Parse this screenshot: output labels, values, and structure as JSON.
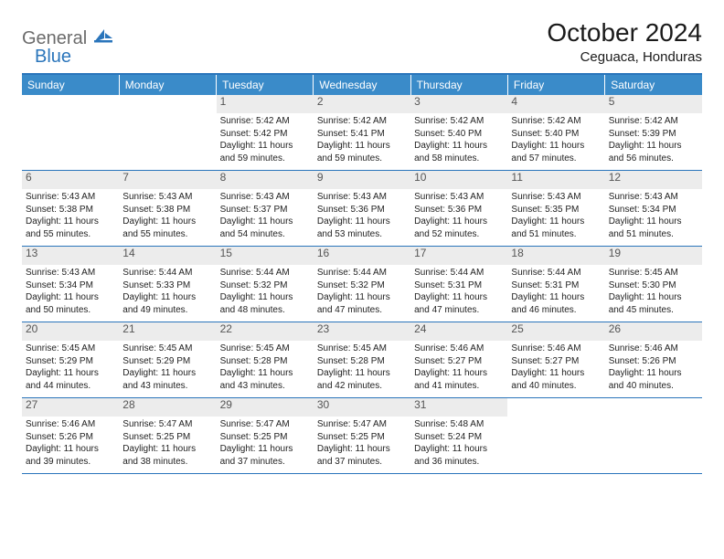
{
  "branding": {
    "word1": "General",
    "word2": "Blue",
    "word1_color": "#6b6b6b",
    "word2_color": "#2a75bb",
    "sail_color": "#2a75bb"
  },
  "header": {
    "month_title": "October 2024",
    "location": "Ceguaca, Honduras"
  },
  "colors": {
    "header_bar": "#3a8bc9",
    "divider": "#2a75bb",
    "daynum_bg": "#ececec",
    "daynum_text": "#555555",
    "cell_text": "#222222",
    "page_bg": "#ffffff"
  },
  "weekdays": [
    "Sunday",
    "Monday",
    "Tuesday",
    "Wednesday",
    "Thursday",
    "Friday",
    "Saturday"
  ],
  "weeks": [
    [
      null,
      null,
      {
        "n": "1",
        "sunrise": "5:42 AM",
        "sunset": "5:42 PM",
        "daylight": "11 hours and 59 minutes."
      },
      {
        "n": "2",
        "sunrise": "5:42 AM",
        "sunset": "5:41 PM",
        "daylight": "11 hours and 59 minutes."
      },
      {
        "n": "3",
        "sunrise": "5:42 AM",
        "sunset": "5:40 PM",
        "daylight": "11 hours and 58 minutes."
      },
      {
        "n": "4",
        "sunrise": "5:42 AM",
        "sunset": "5:40 PM",
        "daylight": "11 hours and 57 minutes."
      },
      {
        "n": "5",
        "sunrise": "5:42 AM",
        "sunset": "5:39 PM",
        "daylight": "11 hours and 56 minutes."
      }
    ],
    [
      {
        "n": "6",
        "sunrise": "5:43 AM",
        "sunset": "5:38 PM",
        "daylight": "11 hours and 55 minutes."
      },
      {
        "n": "7",
        "sunrise": "5:43 AM",
        "sunset": "5:38 PM",
        "daylight": "11 hours and 55 minutes."
      },
      {
        "n": "8",
        "sunrise": "5:43 AM",
        "sunset": "5:37 PM",
        "daylight": "11 hours and 54 minutes."
      },
      {
        "n": "9",
        "sunrise": "5:43 AM",
        "sunset": "5:36 PM",
        "daylight": "11 hours and 53 minutes."
      },
      {
        "n": "10",
        "sunrise": "5:43 AM",
        "sunset": "5:36 PM",
        "daylight": "11 hours and 52 minutes."
      },
      {
        "n": "11",
        "sunrise": "5:43 AM",
        "sunset": "5:35 PM",
        "daylight": "11 hours and 51 minutes."
      },
      {
        "n": "12",
        "sunrise": "5:43 AM",
        "sunset": "5:34 PM",
        "daylight": "11 hours and 51 minutes."
      }
    ],
    [
      {
        "n": "13",
        "sunrise": "5:43 AM",
        "sunset": "5:34 PM",
        "daylight": "11 hours and 50 minutes."
      },
      {
        "n": "14",
        "sunrise": "5:44 AM",
        "sunset": "5:33 PM",
        "daylight": "11 hours and 49 minutes."
      },
      {
        "n": "15",
        "sunrise": "5:44 AM",
        "sunset": "5:32 PM",
        "daylight": "11 hours and 48 minutes."
      },
      {
        "n": "16",
        "sunrise": "5:44 AM",
        "sunset": "5:32 PM",
        "daylight": "11 hours and 47 minutes."
      },
      {
        "n": "17",
        "sunrise": "5:44 AM",
        "sunset": "5:31 PM",
        "daylight": "11 hours and 47 minutes."
      },
      {
        "n": "18",
        "sunrise": "5:44 AM",
        "sunset": "5:31 PM",
        "daylight": "11 hours and 46 minutes."
      },
      {
        "n": "19",
        "sunrise": "5:45 AM",
        "sunset": "5:30 PM",
        "daylight": "11 hours and 45 minutes."
      }
    ],
    [
      {
        "n": "20",
        "sunrise": "5:45 AM",
        "sunset": "5:29 PM",
        "daylight": "11 hours and 44 minutes."
      },
      {
        "n": "21",
        "sunrise": "5:45 AM",
        "sunset": "5:29 PM",
        "daylight": "11 hours and 43 minutes."
      },
      {
        "n": "22",
        "sunrise": "5:45 AM",
        "sunset": "5:28 PM",
        "daylight": "11 hours and 43 minutes."
      },
      {
        "n": "23",
        "sunrise": "5:45 AM",
        "sunset": "5:28 PM",
        "daylight": "11 hours and 42 minutes."
      },
      {
        "n": "24",
        "sunrise": "5:46 AM",
        "sunset": "5:27 PM",
        "daylight": "11 hours and 41 minutes."
      },
      {
        "n": "25",
        "sunrise": "5:46 AM",
        "sunset": "5:27 PM",
        "daylight": "11 hours and 40 minutes."
      },
      {
        "n": "26",
        "sunrise": "5:46 AM",
        "sunset": "5:26 PM",
        "daylight": "11 hours and 40 minutes."
      }
    ],
    [
      {
        "n": "27",
        "sunrise": "5:46 AM",
        "sunset": "5:26 PM",
        "daylight": "11 hours and 39 minutes."
      },
      {
        "n": "28",
        "sunrise": "5:47 AM",
        "sunset": "5:25 PM",
        "daylight": "11 hours and 38 minutes."
      },
      {
        "n": "29",
        "sunrise": "5:47 AM",
        "sunset": "5:25 PM",
        "daylight": "11 hours and 37 minutes."
      },
      {
        "n": "30",
        "sunrise": "5:47 AM",
        "sunset": "5:25 PM",
        "daylight": "11 hours and 37 minutes."
      },
      {
        "n": "31",
        "sunrise": "5:48 AM",
        "sunset": "5:24 PM",
        "daylight": "11 hours and 36 minutes."
      },
      null,
      null
    ]
  ],
  "labels": {
    "sunrise_prefix": "Sunrise: ",
    "sunset_prefix": "Sunset: ",
    "daylight_prefix": "Daylight: "
  }
}
